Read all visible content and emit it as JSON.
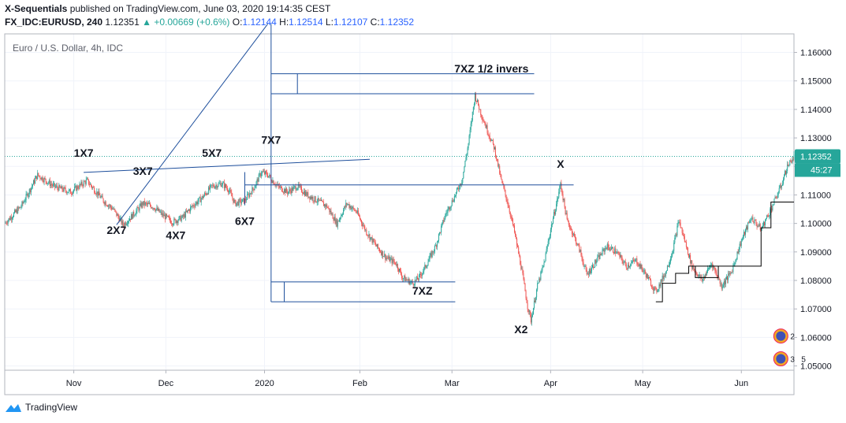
{
  "header": {
    "author": "X-Sequentials",
    "published_text": "published on TradingView.com, June 03, 2020 19:14:35 CEST",
    "symbol": "FX_IDC:EURUSD, 240",
    "last": "1.12351",
    "change": "+0.00669 (+0.6%)",
    "o_label": "O:",
    "o_value": "1.12144",
    "h_label": "H:",
    "h_value": "1.12514",
    "l_label": "L:",
    "l_value": "1.12107",
    "c_label": "C:",
    "c_value": "1.12352"
  },
  "footer": {
    "brand": "TradingView"
  },
  "chart_data": {
    "type": "candlestick",
    "title": "Euro / U.S. Dollar, 4h, IDC",
    "xlabel": "",
    "ylabel": "",
    "ylim": [
      1.0485,
      1.1665
    ],
    "y_ticks": [
      "1.16000",
      "1.15000",
      "1.14000",
      "1.13000",
      "1.12000",
      "1.11000",
      "1.10000",
      "1.09000",
      "1.08000",
      "1.07000",
      "1.06000",
      "1.05000"
    ],
    "x_ticks": [
      "Nov",
      "Dec",
      "2020",
      "Feb",
      "Mar",
      "Apr",
      "May",
      "Jun"
    ],
    "price_label": "1.12352",
    "countdown": "45:27",
    "colors": {
      "up": "#26a69a",
      "down": "#ef5350",
      "drawing": "#1e4f9c",
      "price_line": "#26a69a"
    },
    "close_path": [
      [
        0,
        1.1
      ],
      [
        5,
        1.106
      ],
      [
        10,
        1.117
      ],
      [
        15,
        1.113
      ],
      [
        20,
        1.111
      ],
      [
        25,
        1.115
      ],
      [
        30,
        1.108
      ],
      [
        33,
        1.105
      ],
      [
        36,
        1.0995
      ],
      [
        39,
        1.103
      ],
      [
        42,
        1.107
      ],
      [
        45,
        1.106
      ],
      [
        48,
        1.103
      ],
      [
        51,
        1.1005
      ],
      [
        54,
        1.102
      ],
      [
        57,
        1.106
      ],
      [
        60,
        1.109
      ],
      [
        63,
        1.113
      ],
      [
        66,
        1.114
      ],
      [
        68,
        1.112
      ],
      [
        70,
        1.107
      ],
      [
        73,
        1.108
      ],
      [
        76,
        1.113
      ],
      [
        78,
        1.118
      ],
      [
        80,
        1.117
      ],
      [
        83,
        1.113
      ],
      [
        86,
        1.111
      ],
      [
        89,
        1.113
      ],
      [
        92,
        1.11
      ],
      [
        95,
        1.108
      ],
      [
        98,
        1.106
      ],
      [
        101,
        1.1
      ],
      [
        104,
        1.107
      ],
      [
        107,
        1.104
      ],
      [
        110,
        1.097
      ],
      [
        113,
        1.092
      ],
      [
        116,
        1.088
      ],
      [
        119,
        1.086
      ],
      [
        121,
        1.081
      ],
      [
        124,
        1.079
      ],
      [
        126,
        1.081
      ],
      [
        128,
        1.085
      ],
      [
        131,
        1.092
      ],
      [
        134,
        1.103
      ],
      [
        137,
        1.11
      ],
      [
        139,
        1.115
      ],
      [
        141,
        1.128
      ],
      [
        143,
        1.145
      ],
      [
        145,
        1.138
      ],
      [
        147,
        1.132
      ],
      [
        149,
        1.126
      ],
      [
        151,
        1.115
      ],
      [
        153,
        1.107
      ],
      [
        155,
        1.097
      ],
      [
        157,
        1.085
      ],
      [
        159,
        1.071
      ],
      [
        160,
        1.066
      ],
      [
        162,
        1.078
      ],
      [
        164,
        1.086
      ],
      [
        166,
        1.098
      ],
      [
        168,
        1.108
      ],
      [
        169,
        1.114
      ],
      [
        171,
        1.101
      ],
      [
        173,
        1.096
      ],
      [
        175,
        1.09
      ],
      [
        177,
        1.082
      ],
      [
        180,
        1.087
      ],
      [
        183,
        1.092
      ],
      [
        186,
        1.09
      ],
      [
        189,
        1.085
      ],
      [
        192,
        1.087
      ],
      [
        195,
        1.082
      ],
      [
        198,
        1.076
      ],
      [
        201,
        1.083
      ],
      [
        203,
        1.09
      ],
      [
        205,
        1.101
      ],
      [
        207,
        1.093
      ],
      [
        209,
        1.085
      ],
      [
        212,
        1.08
      ],
      [
        215,
        1.086
      ],
      [
        218,
        1.078
      ],
      [
        221,
        1.083
      ],
      [
        224,
        1.094
      ],
      [
        227,
        1.102
      ],
      [
        230,
        1.098
      ],
      [
        233,
        1.105
      ],
      [
        236,
        1.113
      ],
      [
        238,
        1.12
      ],
      [
        240,
        1.1235
      ]
    ],
    "timeline": {
      "bars": 240,
      "tick_bars": [
        21,
        49,
        79,
        108,
        136,
        166,
        194,
        224
      ]
    },
    "annotations": [
      {
        "label": "1X7",
        "bar": 24,
        "price": 1.1234
      },
      {
        "label": "2X7",
        "bar": 34,
        "price": 1.0963
      },
      {
        "label": "3X7",
        "bar": 42,
        "price": 1.117
      },
      {
        "label": "4X7",
        "bar": 52,
        "price": 1.0945
      },
      {
        "label": "5X7",
        "bar": 63,
        "price": 1.1234
      },
      {
        "label": "6X7",
        "bar": 73,
        "price": 1.0995
      },
      {
        "label": "7X7",
        "bar": 81,
        "price": 1.128
      },
      {
        "label": "7XZ 1/2 invers",
        "bar": 148,
        "price": 1.153
      },
      {
        "label": "X",
        "bar": 169,
        "price": 1.1195
      },
      {
        "label": "7XZ",
        "bar": 127,
        "price": 1.075
      },
      {
        "label": "X2",
        "bar": 157,
        "price": 1.0615
      }
    ],
    "trendlines": [
      {
        "name": "trend-1x7-7x7",
        "from": [
          24,
          1.1179
        ],
        "to": [
          111,
          1.1225
        ]
      },
      {
        "name": "trend-2x7-up",
        "from": [
          34,
          1.0995
        ],
        "to": [
          80,
          1.17
        ]
      },
      {
        "name": "vline-7x7",
        "from": [
          81,
          1.17
        ],
        "to": [
          81,
          1.0725
        ]
      },
      {
        "name": "range-top-1",
        "from": [
          81,
          1.1525
        ],
        "to": [
          161,
          1.1525
        ]
      },
      {
        "name": "range-top-2",
        "from": [
          81,
          1.1455
        ],
        "to": [
          161,
          1.1455
        ]
      },
      {
        "name": "range-top-tick",
        "from": [
          89,
          1.1525
        ],
        "to": [
          89,
          1.1455
        ]
      },
      {
        "name": "range-bottom-1",
        "from": [
          81,
          1.0795
        ],
        "to": [
          137,
          1.0795
        ]
      },
      {
        "name": "range-bottom-2",
        "from": [
          81,
          1.0725
        ],
        "to": [
          137,
          1.0725
        ]
      },
      {
        "name": "range-bottom-tick",
        "from": [
          85,
          1.0795
        ],
        "to": [
          85,
          1.0725
        ]
      },
      {
        "name": "x-level",
        "from": [
          73,
          1.1135
        ],
        "to": [
          173,
          1.1135
        ]
      },
      {
        "name": "step-6x7",
        "from": [
          73,
          1.118
        ],
        "to": [
          73,
          1.1065
        ]
      }
    ],
    "steps": [
      {
        "name": "step-line",
        "points": [
          [
            198,
            1.0725
          ],
          [
            200,
            1.0725
          ],
          [
            200,
            1.079
          ],
          [
            204,
            1.079
          ],
          [
            204,
            1.0825
          ],
          [
            208,
            1.0825
          ],
          [
            208,
            1.085
          ],
          [
            230,
            1.085
          ],
          [
            230,
            1.0985
          ],
          [
            233,
            1.0985
          ],
          [
            233,
            1.1075
          ],
          [
            240,
            1.1075
          ]
        ]
      },
      {
        "name": "step-line-2",
        "points": [
          [
            210,
            1.085
          ],
          [
            210,
            1.081
          ],
          [
            217,
            1.081
          ],
          [
            217,
            1.085
          ]
        ]
      }
    ],
    "badges": [
      {
        "name": "indicator-badge-top",
        "text": "2",
        "bar": 236,
        "price": 1.0605
      },
      {
        "name": "indicator-badge-bottom",
        "text": "3",
        "extra": "5",
        "bar": 236,
        "price": 1.0525
      }
    ]
  }
}
